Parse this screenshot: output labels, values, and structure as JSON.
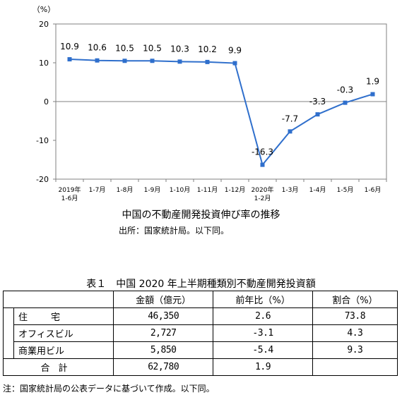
{
  "chart_data": {
    "type": "line",
    "unit": "（%）",
    "categories": [
      "2019年\n1-6月",
      "1-7月",
      "1-8月",
      "1-9月",
      "1-10月",
      "1-11月",
      "1-12月",
      "2020年\n1-2月",
      "1-3月",
      "1-4月",
      "1-5月",
      "1-6月"
    ],
    "values": [
      10.9,
      10.6,
      10.5,
      10.5,
      10.3,
      10.2,
      9.9,
      -16.3,
      -7.7,
      -3.3,
      -0.3,
      1.9
    ],
    "value_labels": [
      "10.9",
      "10.6",
      "10.5",
      "10.5",
      "10.3",
      "10.2",
      "9.9",
      "-16.3",
      "-7.7",
      "-3.3",
      "-0.3",
      "1.9"
    ],
    "ylim": [
      -20,
      20
    ],
    "yticks": [
      20,
      10,
      0,
      -10,
      -20
    ],
    "ytick_labels": [
      "20",
      "10",
      "0",
      "-10",
      "-20"
    ],
    "grid": false,
    "line_color": "#2f6fcc",
    "title": "中国の不動産開発投資伸び率の推移",
    "source": "出所：国家統計局。以下同。"
  },
  "table": {
    "caption": "表１　中国 2020 年上半期種類別不動産開発投資額",
    "headers": [
      "",
      "金額（億元）",
      "前年比（%）",
      "割合（%）"
    ],
    "rows": [
      {
        "label": "住　宅",
        "amount": "46,350",
        "yoy": "2.6",
        "share": "73.8"
      },
      {
        "label": "オフィスビル",
        "amount": "2,727",
        "yoy": "-3.1",
        "share": "4.3"
      },
      {
        "label": "商業用ビル",
        "amount": "5,850",
        "yoy": "-5.4",
        "share": "9.3"
      }
    ],
    "total": {
      "label": "合計",
      "amount": "62,780",
      "yoy": "1.9",
      "share": ""
    },
    "note": "注：国家統計局の公表データに基づいて作成。以下同。"
  }
}
